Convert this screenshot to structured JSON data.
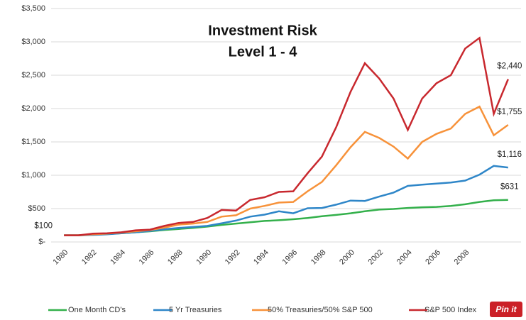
{
  "chart_data": {
    "type": "line",
    "title": "Investment Risk",
    "subtitle": "Level 1 - 4",
    "x": [
      1980,
      1981,
      1982,
      1983,
      1984,
      1985,
      1986,
      1987,
      1988,
      1989,
      1990,
      1991,
      1992,
      1993,
      1994,
      1995,
      1996,
      1997,
      1998,
      1999,
      2000,
      2001,
      2002,
      2003,
      2004,
      2005,
      2006,
      2007,
      2008,
      2009,
      2010,
      2011
    ],
    "xlim": [
      1979,
      2012
    ],
    "xticks": [
      1980,
      1982,
      1984,
      1986,
      1988,
      1990,
      1992,
      1994,
      1996,
      1998,
      2000,
      2002,
      2004,
      2006,
      2008
    ],
    "ylim": [
      0,
      3500
    ],
    "yticks": [
      {
        "value": 0,
        "label": "$-"
      },
      {
        "value": 500,
        "label": "$500"
      },
      {
        "value": 1000,
        "label": "$1,000"
      },
      {
        "value": 1500,
        "label": "$1,500"
      },
      {
        "value": 2000,
        "label": "$2,000"
      },
      {
        "value": 2500,
        "label": "$2,500"
      },
      {
        "value": 3000,
        "label": "$3,000"
      },
      {
        "value": 3500,
        "label": "$3,500"
      }
    ],
    "grid": true,
    "legend": "bottom",
    "series": [
      {
        "name": "One Month CD's",
        "color": "#33b04b",
        "values": [
          100,
          100,
          110,
          120,
          130,
          145,
          160,
          180,
          195,
          210,
          230,
          255,
          275,
          295,
          315,
          325,
          340,
          360,
          385,
          405,
          430,
          460,
          485,
          495,
          510,
          520,
          525,
          540,
          565,
          600,
          625,
          631
        ],
        "value_labels": [
          "$100",
          null,
          null,
          null,
          null,
          null,
          null,
          null,
          null,
          null,
          null,
          null,
          null,
          null,
          null,
          null,
          null,
          null,
          null,
          null,
          null,
          null,
          null,
          null,
          null,
          null,
          null,
          null,
          null,
          null,
          null,
          "$631"
        ]
      },
      {
        "name": "5 Yr Treasuries",
        "color": "#2e86c8",
        "values": [
          100,
          100,
          105,
          115,
          130,
          145,
          165,
          190,
          210,
          225,
          240,
          280,
          320,
          380,
          410,
          460,
          430,
          505,
          510,
          560,
          620,
          615,
          680,
          740,
          840,
          860,
          875,
          890,
          920,
          1010,
          1140,
          1116
        ],
        "value_labels": [
          null,
          null,
          null,
          null,
          null,
          null,
          null,
          null,
          null,
          null,
          null,
          null,
          null,
          null,
          null,
          null,
          null,
          null,
          null,
          null,
          null,
          null,
          null,
          null,
          null,
          null,
          null,
          null,
          null,
          null,
          null,
          "$1,116"
        ]
      },
      {
        "name": "50% Treasuries/50% S&P 500",
        "color": "#f7923a",
        "values": [
          100,
          100,
          115,
          125,
          140,
          160,
          180,
          215,
          260,
          275,
          300,
          380,
          400,
          500,
          540,
          590,
          600,
          760,
          900,
          1150,
          1420,
          1650,
          1560,
          1430,
          1250,
          1500,
          1620,
          1700,
          1920,
          2030,
          1600,
          1755
        ],
        "value_labels": [
          null,
          null,
          null,
          null,
          null,
          null,
          null,
          null,
          null,
          null,
          null,
          null,
          null,
          null,
          null,
          null,
          null,
          null,
          null,
          null,
          null,
          null,
          null,
          null,
          null,
          null,
          null,
          null,
          null,
          null,
          null,
          "$1,755"
        ]
      },
      {
        "name": "S&P 500 Index",
        "color": "#c8282e",
        "values": [
          100,
          100,
          125,
          130,
          145,
          175,
          185,
          240,
          285,
          300,
          360,
          480,
          470,
          630,
          670,
          750,
          760,
          1030,
          1280,
          1720,
          2250,
          2680,
          2450,
          2150,
          1680,
          2150,
          2380,
          2500,
          2900,
          3060,
          1920,
          2440
        ],
        "value_labels": [
          null,
          null,
          null,
          null,
          null,
          null,
          null,
          null,
          null,
          null,
          null,
          null,
          null,
          null,
          null,
          null,
          null,
          null,
          null,
          null,
          null,
          null,
          null,
          null,
          null,
          null,
          null,
          null,
          null,
          null,
          null,
          "$2,440"
        ]
      }
    ]
  },
  "pin_button": "Pin it"
}
